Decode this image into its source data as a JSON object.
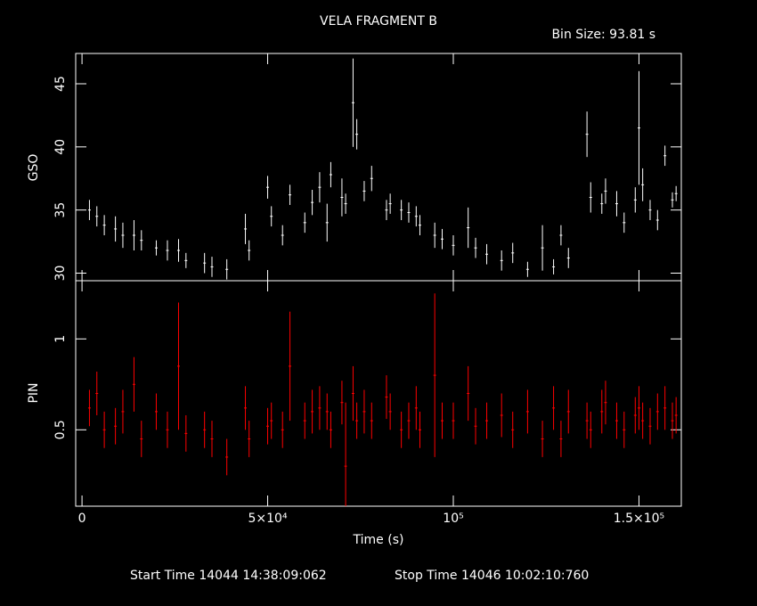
{
  "chart_data": [
    {
      "type": "errorbar",
      "title": "VELA FRAGMENT B",
      "subtitle": "Bin Size: 93.81 s",
      "ylabel": "GSO",
      "color": "#ffffff",
      "x": [
        2000,
        4000,
        6000,
        9000,
        11000,
        14000,
        16000,
        20000,
        23000,
        26000,
        28000,
        33000,
        35000,
        39000,
        44000,
        45000,
        50000,
        51000,
        54000,
        56000,
        60000,
        62000,
        64000,
        66000,
        67000,
        70000,
        71000,
        73000,
        74000,
        76000,
        78000,
        82000,
        83000,
        86000,
        88000,
        90000,
        91000,
        95000,
        97000,
        100000,
        104000,
        106000,
        109000,
        113000,
        116000,
        120000,
        124000,
        127000,
        129000,
        131000,
        136000,
        137000,
        140000,
        141000,
        144000,
        146000,
        149000,
        150000,
        151000,
        153000,
        155000,
        157000,
        159000,
        160000
      ],
      "values": [
        35,
        34.5,
        33.8,
        33.5,
        33,
        33,
        32.6,
        32,
        31.8,
        31.8,
        31,
        30.8,
        30.5,
        30.3,
        33.5,
        31.8,
        36.8,
        34.5,
        33,
        36.2,
        34,
        35.6,
        36.8,
        34,
        37.8,
        36,
        35.5,
        43.5,
        41,
        36.5,
        37.5,
        35,
        35.5,
        35,
        34.8,
        34.5,
        33.8,
        33,
        32.7,
        32.2,
        33.6,
        32,
        31.5,
        31,
        31.6,
        30.3,
        32,
        30.5,
        33,
        31.2,
        41,
        36,
        35.5,
        36.5,
        35.5,
        34,
        35.8,
        41.5,
        37,
        35,
        34.2,
        39.3,
        35.8,
        36.3
      ],
      "errors": [
        0.8,
        0.8,
        0.8,
        1,
        1,
        1.2,
        0.8,
        0.6,
        0.8,
        0.9,
        0.6,
        0.8,
        0.8,
        0.8,
        1.2,
        0.8,
        0.9,
        0.8,
        0.8,
        0.8,
        0.8,
        1,
        1.2,
        1.5,
        1,
        1.5,
        0.8,
        3.5,
        1.2,
        0.8,
        1,
        0.8,
        0.8,
        0.8,
        0.8,
        0.8,
        0.8,
        1,
        0.8,
        0.8,
        1.6,
        0.8,
        0.8,
        0.8,
        0.8,
        0.6,
        1.8,
        0.6,
        0.8,
        0.8,
        1.8,
        1.2,
        0.8,
        1,
        1,
        0.8,
        1,
        4.5,
        1.3,
        0.8,
        0.8,
        0.8,
        0.6,
        0.6
      ],
      "xlim": [
        -1700,
        161400
      ],
      "ylim": [
        29.4,
        47.4
      ],
      "yticks": [
        30,
        35,
        40,
        45
      ]
    },
    {
      "type": "errorbar",
      "ylabel": "PIN",
      "xlabel": "Time (s)",
      "color": "#ff0000",
      "start_time": "Start Time 14044 14:38:09:062",
      "stop_time": "Stop Time 14046 10:02:10:760",
      "x": [
        2000,
        4000,
        6000,
        9000,
        11000,
        14000,
        16000,
        20000,
        23000,
        26000,
        28000,
        33000,
        35000,
        39000,
        44000,
        45000,
        50000,
        51000,
        54000,
        56000,
        60000,
        62000,
        64000,
        66000,
        67000,
        70000,
        71000,
        73000,
        74000,
        76000,
        78000,
        82000,
        83000,
        86000,
        88000,
        90000,
        91000,
        95000,
        97000,
        100000,
        104000,
        106000,
        109000,
        113000,
        116000,
        120000,
        124000,
        127000,
        129000,
        131000,
        136000,
        137000,
        140000,
        141000,
        144000,
        146000,
        149000,
        150000,
        151000,
        153000,
        155000,
        157000,
        159000,
        160000
      ],
      "values": [
        0.62,
        0.7,
        0.5,
        0.52,
        0.6,
        0.75,
        0.45,
        0.6,
        0.5,
        0.85,
        0.48,
        0.5,
        0.45,
        0.35,
        0.62,
        0.45,
        0.52,
        0.55,
        0.5,
        0.85,
        0.55,
        0.6,
        0.62,
        0.6,
        0.5,
        0.65,
        0.3,
        0.7,
        0.55,
        0.6,
        0.55,
        0.68,
        0.6,
        0.5,
        0.55,
        0.62,
        0.5,
        0.8,
        0.55,
        0.55,
        0.7,
        0.52,
        0.55,
        0.58,
        0.5,
        0.6,
        0.45,
        0.62,
        0.45,
        0.6,
        0.55,
        0.5,
        0.6,
        0.65,
        0.55,
        0.5,
        0.58,
        0.62,
        0.55,
        0.52,
        0.6,
        0.62,
        0.55,
        0.58
      ],
      "errors": [
        0.1,
        0.12,
        0.1,
        0.1,
        0.12,
        0.15,
        0.1,
        0.1,
        0.1,
        0.35,
        0.1,
        0.1,
        0.1,
        0.1,
        0.12,
        0.1,
        0.1,
        0.1,
        0.1,
        0.3,
        0.1,
        0.12,
        0.12,
        0.1,
        0.1,
        0.12,
        0.35,
        0.15,
        0.1,
        0.12,
        0.1,
        0.12,
        0.1,
        0.1,
        0.1,
        0.12,
        0.1,
        0.45,
        0.1,
        0.1,
        0.15,
        0.1,
        0.1,
        0.12,
        0.1,
        0.12,
        0.1,
        0.12,
        0.1,
        0.12,
        0.1,
        0.1,
        0.12,
        0.12,
        0.1,
        0.1,
        0.1,
        0.12,
        0.1,
        0.1,
        0.1,
        0.12,
        0.1,
        0.1
      ],
      "xlim": [
        -1700,
        161400
      ],
      "ylim": [
        0.08,
        1.32
      ],
      "yticks": [
        0.5,
        1
      ],
      "xticks": [
        0,
        {
          "value": 50000,
          "label": "5×10⁴"
        },
        {
          "value": 100000,
          "label": "10⁵"
        },
        {
          "value": 150000,
          "label": "1.5×10⁵"
        }
      ]
    }
  ]
}
